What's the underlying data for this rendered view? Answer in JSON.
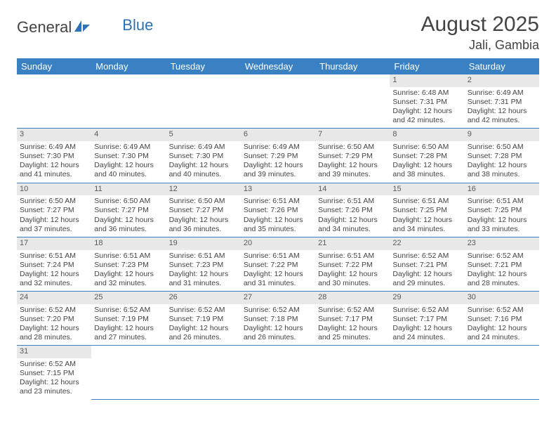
{
  "logo": {
    "text1": "General",
    "text2": "Blue"
  },
  "title": "August 2025",
  "location": "Jali, Gambia",
  "colors": {
    "header_bg": "#3a81c4",
    "header_fg": "#ffffff",
    "daynum_bg": "#e8e8e8",
    "text": "#444444",
    "rule": "#3a81c4",
    "logo_blue": "#2d72b5"
  },
  "weekdays": [
    "Sunday",
    "Monday",
    "Tuesday",
    "Wednesday",
    "Thursday",
    "Friday",
    "Saturday"
  ],
  "weeks": [
    [
      {
        "n": "",
        "sr": "",
        "ss": "",
        "dl": ""
      },
      {
        "n": "",
        "sr": "",
        "ss": "",
        "dl": ""
      },
      {
        "n": "",
        "sr": "",
        "ss": "",
        "dl": ""
      },
      {
        "n": "",
        "sr": "",
        "ss": "",
        "dl": ""
      },
      {
        "n": "",
        "sr": "",
        "ss": "",
        "dl": ""
      },
      {
        "n": "1",
        "sr": "Sunrise: 6:48 AM",
        "ss": "Sunset: 7:31 PM",
        "dl": "Daylight: 12 hours and 42 minutes."
      },
      {
        "n": "2",
        "sr": "Sunrise: 6:49 AM",
        "ss": "Sunset: 7:31 PM",
        "dl": "Daylight: 12 hours and 42 minutes."
      }
    ],
    [
      {
        "n": "3",
        "sr": "Sunrise: 6:49 AM",
        "ss": "Sunset: 7:30 PM",
        "dl": "Daylight: 12 hours and 41 minutes."
      },
      {
        "n": "4",
        "sr": "Sunrise: 6:49 AM",
        "ss": "Sunset: 7:30 PM",
        "dl": "Daylight: 12 hours and 40 minutes."
      },
      {
        "n": "5",
        "sr": "Sunrise: 6:49 AM",
        "ss": "Sunset: 7:30 PM",
        "dl": "Daylight: 12 hours and 40 minutes."
      },
      {
        "n": "6",
        "sr": "Sunrise: 6:49 AM",
        "ss": "Sunset: 7:29 PM",
        "dl": "Daylight: 12 hours and 39 minutes."
      },
      {
        "n": "7",
        "sr": "Sunrise: 6:50 AM",
        "ss": "Sunset: 7:29 PM",
        "dl": "Daylight: 12 hours and 39 minutes."
      },
      {
        "n": "8",
        "sr": "Sunrise: 6:50 AM",
        "ss": "Sunset: 7:28 PM",
        "dl": "Daylight: 12 hours and 38 minutes."
      },
      {
        "n": "9",
        "sr": "Sunrise: 6:50 AM",
        "ss": "Sunset: 7:28 PM",
        "dl": "Daylight: 12 hours and 38 minutes."
      }
    ],
    [
      {
        "n": "10",
        "sr": "Sunrise: 6:50 AM",
        "ss": "Sunset: 7:27 PM",
        "dl": "Daylight: 12 hours and 37 minutes."
      },
      {
        "n": "11",
        "sr": "Sunrise: 6:50 AM",
        "ss": "Sunset: 7:27 PM",
        "dl": "Daylight: 12 hours and 36 minutes."
      },
      {
        "n": "12",
        "sr": "Sunrise: 6:50 AM",
        "ss": "Sunset: 7:27 PM",
        "dl": "Daylight: 12 hours and 36 minutes."
      },
      {
        "n": "13",
        "sr": "Sunrise: 6:51 AM",
        "ss": "Sunset: 7:26 PM",
        "dl": "Daylight: 12 hours and 35 minutes."
      },
      {
        "n": "14",
        "sr": "Sunrise: 6:51 AM",
        "ss": "Sunset: 7:26 PM",
        "dl": "Daylight: 12 hours and 34 minutes."
      },
      {
        "n": "15",
        "sr": "Sunrise: 6:51 AM",
        "ss": "Sunset: 7:25 PM",
        "dl": "Daylight: 12 hours and 34 minutes."
      },
      {
        "n": "16",
        "sr": "Sunrise: 6:51 AM",
        "ss": "Sunset: 7:25 PM",
        "dl": "Daylight: 12 hours and 33 minutes."
      }
    ],
    [
      {
        "n": "17",
        "sr": "Sunrise: 6:51 AM",
        "ss": "Sunset: 7:24 PM",
        "dl": "Daylight: 12 hours and 32 minutes."
      },
      {
        "n": "18",
        "sr": "Sunrise: 6:51 AM",
        "ss": "Sunset: 7:23 PM",
        "dl": "Daylight: 12 hours and 32 minutes."
      },
      {
        "n": "19",
        "sr": "Sunrise: 6:51 AM",
        "ss": "Sunset: 7:23 PM",
        "dl": "Daylight: 12 hours and 31 minutes."
      },
      {
        "n": "20",
        "sr": "Sunrise: 6:51 AM",
        "ss": "Sunset: 7:22 PM",
        "dl": "Daylight: 12 hours and 31 minutes."
      },
      {
        "n": "21",
        "sr": "Sunrise: 6:51 AM",
        "ss": "Sunset: 7:22 PM",
        "dl": "Daylight: 12 hours and 30 minutes."
      },
      {
        "n": "22",
        "sr": "Sunrise: 6:52 AM",
        "ss": "Sunset: 7:21 PM",
        "dl": "Daylight: 12 hours and 29 minutes."
      },
      {
        "n": "23",
        "sr": "Sunrise: 6:52 AM",
        "ss": "Sunset: 7:21 PM",
        "dl": "Daylight: 12 hours and 28 minutes."
      }
    ],
    [
      {
        "n": "24",
        "sr": "Sunrise: 6:52 AM",
        "ss": "Sunset: 7:20 PM",
        "dl": "Daylight: 12 hours and 28 minutes."
      },
      {
        "n": "25",
        "sr": "Sunrise: 6:52 AM",
        "ss": "Sunset: 7:19 PM",
        "dl": "Daylight: 12 hours and 27 minutes."
      },
      {
        "n": "26",
        "sr": "Sunrise: 6:52 AM",
        "ss": "Sunset: 7:19 PM",
        "dl": "Daylight: 12 hours and 26 minutes."
      },
      {
        "n": "27",
        "sr": "Sunrise: 6:52 AM",
        "ss": "Sunset: 7:18 PM",
        "dl": "Daylight: 12 hours and 26 minutes."
      },
      {
        "n": "28",
        "sr": "Sunrise: 6:52 AM",
        "ss": "Sunset: 7:17 PM",
        "dl": "Daylight: 12 hours and 25 minutes."
      },
      {
        "n": "29",
        "sr": "Sunrise: 6:52 AM",
        "ss": "Sunset: 7:17 PM",
        "dl": "Daylight: 12 hours and 24 minutes."
      },
      {
        "n": "30",
        "sr": "Sunrise: 6:52 AM",
        "ss": "Sunset: 7:16 PM",
        "dl": "Daylight: 12 hours and 24 minutes."
      }
    ],
    [
      {
        "n": "31",
        "sr": "Sunrise: 6:52 AM",
        "ss": "Sunset: 7:15 PM",
        "dl": "Daylight: 12 hours and 23 minutes."
      },
      {
        "n": "",
        "sr": "",
        "ss": "",
        "dl": ""
      },
      {
        "n": "",
        "sr": "",
        "ss": "",
        "dl": ""
      },
      {
        "n": "",
        "sr": "",
        "ss": "",
        "dl": ""
      },
      {
        "n": "",
        "sr": "",
        "ss": "",
        "dl": ""
      },
      {
        "n": "",
        "sr": "",
        "ss": "",
        "dl": ""
      },
      {
        "n": "",
        "sr": "",
        "ss": "",
        "dl": ""
      }
    ]
  ]
}
